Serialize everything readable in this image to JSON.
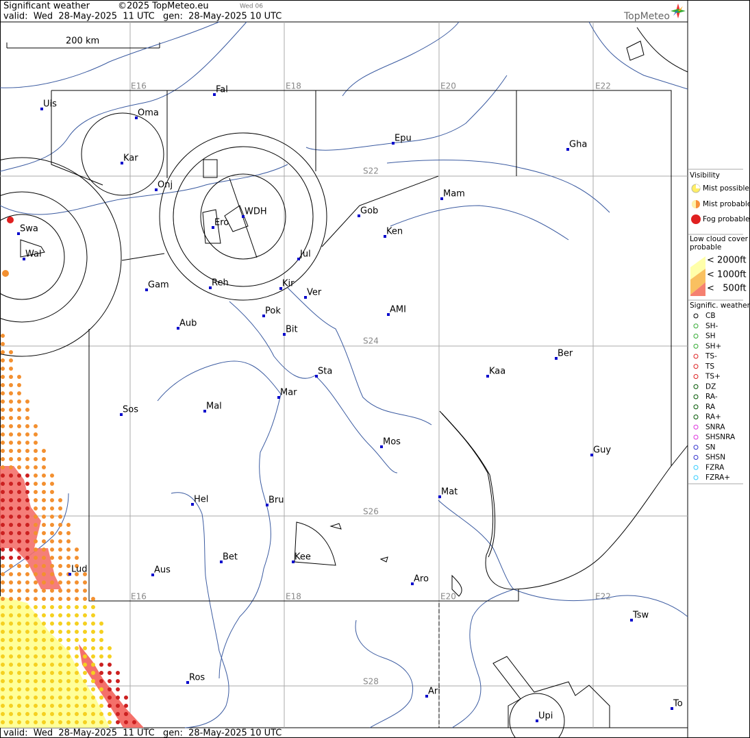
{
  "header": {
    "title": "Significant weather",
    "copyright": "©2025 TopMeteo.eu",
    "day": "Wed 06",
    "valid": "valid:  Wed  28-May-2025  11 UTC",
    "gen": "gen:  28-May-2025 10 UTC",
    "logo": "TopMeteo"
  },
  "footer": {
    "valid": "valid:  Wed  28-May-2025  11 UTC",
    "gen": "gen:  28-May-2025 10 UTC"
  },
  "scale": "200 km",
  "grid": {
    "longitudes": [
      "E16",
      "E18",
      "E20",
      "E22"
    ],
    "latitudes": [
      "S22",
      "S24",
      "S26",
      "S28"
    ]
  },
  "places": [
    "Uis",
    "Fal",
    "Oma",
    "Kar",
    "Epu",
    "Gha",
    "Onj",
    "Mam",
    "Gob",
    "WDH",
    "Ero",
    "Swa",
    "Ken",
    "Wal",
    "Jul",
    "Gam",
    "Reh",
    "Kir",
    "Ver",
    "AMI",
    "Pok",
    "Aub",
    "Bit",
    "Ber",
    "Sta",
    "Kaa",
    "Mar",
    "Sos",
    "Mal",
    "Mos",
    "Guy",
    "Mat",
    "Hel",
    "Bru",
    "Bet",
    "Kee",
    "Lud",
    "Aus",
    "Aro",
    "Tsw",
    "Ros",
    "Ari",
    "Upi",
    "To"
  ],
  "legend": {
    "visibility": {
      "title": "Visibility",
      "items": [
        "Mist possible",
        "Mist probable",
        "Fog probable"
      ]
    },
    "low_cloud": {
      "title_lines": [
        "Low cloud cover",
        "probable"
      ],
      "items": [
        "< 2000ft",
        "< 1000ft",
        "<   500ft"
      ]
    },
    "weather": {
      "title": "Signific. weather",
      "items": [
        "CB",
        "SH-",
        "SH",
        "SH+",
        "TS-",
        "TS",
        "TS+",
        "DZ",
        "RA-",
        "RA",
        "RA+",
        "SNRA",
        "SHSNRA",
        "SN",
        "SHSN",
        "FZRA",
        "FZRA+"
      ]
    }
  }
}
